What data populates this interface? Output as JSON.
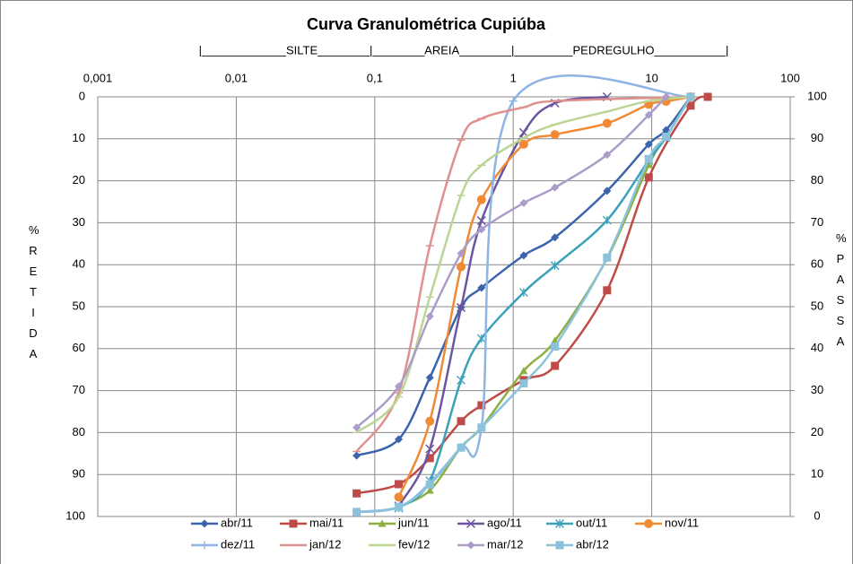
{
  "chart_data": {
    "type": "line",
    "title": "Curva  Granulométrica  Cupiúba",
    "annotations": [
      "|_____________SILTE________|________AREIA________|_________PEDREGULHO___________|"
    ],
    "y_label": "%RETIDA",
    "y2_label": "%PASSA",
    "xscale": "log",
    "xlim": [
      0.001,
      100
    ],
    "xticks": [
      {
        "value": 0.001,
        "label": "0,001"
      },
      {
        "value": 0.01,
        "label": "0,01"
      },
      {
        "value": 0.1,
        "label": "0,1"
      },
      1,
      10,
      100
    ],
    "ylim": [
      100,
      0
    ],
    "yticks": [
      0,
      10,
      20,
      30,
      40,
      50,
      60,
      70,
      80,
      90,
      100
    ],
    "y2lim": [
      0,
      100
    ],
    "y2ticks": [
      0,
      10,
      20,
      30,
      40,
      50,
      60,
      70,
      80,
      90,
      100
    ],
    "grid": true,
    "legend": "bottom",
    "series": [
      {
        "name": "abr/11",
        "color": "#3b64ad",
        "marker": "diamond",
        "x": [
          0.074,
          0.149,
          0.25,
          0.42,
          0.59,
          1.19,
          2.0,
          4.76,
          9.52,
          12.7,
          19.1
        ],
        "values": [
          85.5,
          81.6,
          66.9,
          50.2,
          45.5,
          37.8,
          33.5,
          22.4,
          11.3,
          7.9,
          0
        ]
      },
      {
        "name": "mai/11",
        "color": "#be4b48",
        "marker": "square",
        "x": [
          0.074,
          0.149,
          0.25,
          0.42,
          0.59,
          1.19,
          2.0,
          4.76,
          9.52,
          19.1,
          25.4
        ],
        "values": [
          94.5,
          92.3,
          86.1,
          77.3,
          73.5,
          67.5,
          64.1,
          46.1,
          19.2,
          2.1,
          0
        ]
      },
      {
        "name": "jun/11",
        "color": "#8cb043",
        "marker": "triangle",
        "x": [
          0.149,
          0.25,
          0.42,
          0.59,
          1.19,
          2.0,
          4.76,
          9.52,
          12.7,
          19.1
        ],
        "values": [
          97.7,
          93.8,
          83.5,
          78.8,
          65.3,
          58.1,
          38.5,
          16.2,
          9.6,
          0
        ]
      },
      {
        "name": "ago/11",
        "color": "#6d56a0",
        "marker": "x",
        "x": [
          0.149,
          0.25,
          0.42,
          0.59,
          1.19,
          2.0,
          4.76
        ],
        "values": [
          97.5,
          83.9,
          50.2,
          29.5,
          8.5,
          1.5,
          0
        ]
      },
      {
        "name": "out/11",
        "color": "#3aa1b8",
        "marker": "star",
        "x": [
          0.149,
          0.25,
          0.42,
          0.59,
          1.19,
          2.0,
          4.76,
          9.52,
          12.7,
          19.1
        ],
        "values": [
          98.0,
          91.5,
          67.5,
          57.6,
          46.6,
          40.2,
          29.4,
          15.1,
          9.6,
          0
        ]
      },
      {
        "name": "nov/11",
        "color": "#f08a34",
        "marker": "circle",
        "x": [
          0.149,
          0.25,
          0.42,
          0.59,
          1.19,
          2.0,
          4.76,
          9.52,
          12.7,
          19.1
        ],
        "values": [
          95.4,
          77.3,
          40.5,
          24.5,
          11.3,
          9.0,
          6.3,
          1.8,
          1.1,
          0
        ]
      },
      {
        "name": "dez/11",
        "color": "#8eb4e3",
        "marker": "plus",
        "x": [
          0.074,
          0.149,
          0.25,
          0.42,
          0.59,
          1.0,
          19.1
        ],
        "values": [
          99.0,
          97.8,
          92.0,
          83.5,
          78.8,
          1.0,
          0
        ]
      },
      {
        "name": "jan/12",
        "color": "#e0908e",
        "marker": "dash",
        "x": [
          0.074,
          0.149,
          0.25,
          0.42,
          0.59,
          1.19,
          2.0,
          19.1
        ],
        "values": [
          84.5,
          70.5,
          35.5,
          10.3,
          5.2,
          2.5,
          1.0,
          0
        ]
      },
      {
        "name": "fev/12",
        "color": "#bcd595",
        "marker": "dash",
        "x": [
          0.074,
          0.149,
          0.25,
          0.42,
          0.59,
          1.19,
          2.0,
          4.76,
          9.52,
          19.1
        ],
        "values": [
          80.0,
          71.5,
          47.7,
          23.5,
          16.3,
          9.8,
          6.6,
          3.5,
          1.0,
          0
        ]
      },
      {
        "name": "mar/12",
        "color": "#ab9cc9",
        "marker": "diamond",
        "x": [
          0.074,
          0.149,
          0.25,
          0.42,
          0.59,
          1.19,
          2.0,
          4.76,
          9.52,
          12.7
        ],
        "values": [
          78.8,
          69.0,
          52.3,
          37.3,
          31.6,
          25.3,
          21.6,
          13.8,
          4.3,
          0
        ]
      },
      {
        "name": "abr/12",
        "color": "#8cc3dc",
        "marker": "square",
        "x": [
          0.074,
          0.149,
          0.25,
          0.42,
          0.59,
          1.19,
          2.0,
          4.76,
          9.52,
          12.7,
          19.1
        ],
        "values": [
          98.9,
          97.7,
          92.4,
          83.6,
          78.8,
          68.3,
          59.5,
          38.3,
          14.8,
          9.5,
          0
        ]
      }
    ]
  }
}
